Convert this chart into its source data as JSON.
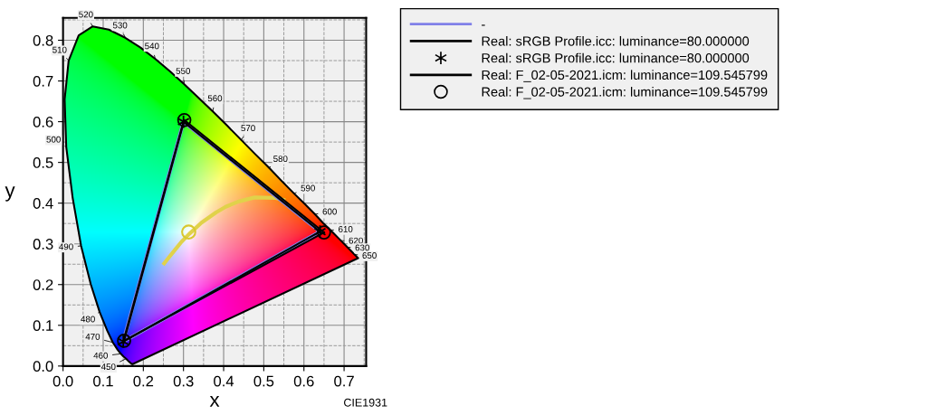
{
  "chart_data": {
    "type": "line",
    "xlabel": "x",
    "ylabel": "y",
    "xlim": [
      0,
      0.755
    ],
    "ylim": [
      0,
      0.855
    ],
    "xticks": [
      {
        "value": 0,
        "label": "0.0"
      },
      {
        "value": 0.05,
        "label": null
      },
      0.1,
      {
        "value": 0.15,
        "label": null
      },
      0.2,
      {
        "value": 0.25,
        "label": null
      },
      0.3,
      {
        "value": 0.35,
        "label": null
      },
      0.4,
      {
        "value": 0.45,
        "label": null
      },
      0.5,
      {
        "value": 0.55,
        "label": null
      },
      0.6,
      {
        "value": 0.65,
        "label": null
      },
      0.7,
      {
        "value": 0.75,
        "label": null
      }
    ],
    "yticks": [
      {
        "value": 0,
        "label": "0.0"
      },
      {
        "value": 0.05,
        "label": null
      },
      0.1,
      {
        "value": 0.15,
        "label": null
      },
      0.2,
      {
        "value": 0.25,
        "label": null
      },
      0.3,
      {
        "value": 0.35,
        "label": null
      },
      0.4,
      {
        "value": 0.45,
        "label": null
      },
      0.5,
      {
        "value": 0.55,
        "label": null
      },
      0.6,
      {
        "value": 0.65,
        "label": null
      },
      0.7,
      {
        "value": 0.75,
        "label": null
      },
      0.8,
      {
        "value": 0.85,
        "label": null
      }
    ],
    "grid": true,
    "legend": "top right",
    "series": [
      {
        "color": "#000000",
        "line_style": "solid",
        "marker": "none",
        "x": [
          0.173,
          0.171,
          0.169,
          0.164,
          0.157,
          0.151,
          0.144,
          0.136,
          0.124,
          0.11,
          0.091,
          0.069,
          0.045,
          0.024,
          0.008,
          0.004,
          0.014,
          0.039,
          0.074,
          0.114,
          0.155,
          0.193,
          0.23,
          0.266,
          0.302,
          0.337,
          0.373,
          0.409,
          0.444,
          0.479,
          0.513,
          0.545,
          0.575,
          0.603,
          0.627,
          0.648,
          0.666,
          0.692,
          0.708,
          0.719,
          0.726,
          0.735,
          0.174
        ],
        "values": [
          0.005,
          0.005,
          0.007,
          0.011,
          0.018,
          0.023,
          0.03,
          0.04,
          0.058,
          0.087,
          0.133,
          0.201,
          0.295,
          0.413,
          0.538,
          0.655,
          0.75,
          0.812,
          0.834,
          0.826,
          0.806,
          0.782,
          0.754,
          0.724,
          0.692,
          0.659,
          0.625,
          0.59,
          0.555,
          0.52,
          0.487,
          0.454,
          0.424,
          0.397,
          0.373,
          0.351,
          0.334,
          0.308,
          0.292,
          0.281,
          0.274,
          0.265,
          0.005
        ]
      },
      {
        "color": "#e0d24a",
        "line_style": "solid",
        "marker": "none",
        "x": [
          0.252,
          0.264,
          0.281,
          0.295,
          0.314,
          0.345,
          0.381,
          0.405,
          0.437,
          0.477,
          0.527,
          0.549
        ],
        "values": [
          0.252,
          0.267,
          0.288,
          0.305,
          0.324,
          0.352,
          0.377,
          0.391,
          0.404,
          0.414,
          0.413,
          0.408
        ]
      },
      {
        "type": "scatter",
        "color": "#d8c830",
        "marker": "circle",
        "x": [
          0.313
        ],
        "values": [
          0.329
        ]
      },
      {
        "name": "-",
        "color": "#8080e8",
        "line_style": "solid",
        "marker": "none",
        "x": [
          0.64,
          0.3,
          0.15
        ],
        "values": [
          0.33,
          0.6,
          0.06
        ]
      },
      {
        "color": "#8080e8",
        "line_style": "solid",
        "marker": "none",
        "x": [
          0.15,
          0.64
        ],
        "values": [
          0.06,
          0.33
        ]
      },
      {
        "name": "Real: sRGB Profile.icc: luminance=80.000000",
        "color": "#000000",
        "line_style": "solid",
        "marker": "cross",
        "x": [
          0.64,
          0.3,
          0.15
        ],
        "values": [
          0.33,
          0.6,
          0.06
        ]
      },
      {
        "color": "#000000",
        "line_style": "solid",
        "marker": "none",
        "x": [
          0.15,
          0.64
        ],
        "values": [
          0.06,
          0.33
        ]
      },
      {
        "name": "Real: F_02-05-2021.icm: luminance=109.545799",
        "color": "#000000",
        "line_style": "solid",
        "marker": "circle",
        "x": [
          0.65,
          0.302,
          0.152
        ],
        "values": [
          0.328,
          0.604,
          0.062
        ]
      },
      {
        "color": "#000000",
        "line_style": "solid",
        "marker": "none",
        "x": [
          0.152,
          0.65
        ],
        "values": [
          0.062,
          0.328
        ]
      }
    ],
    "annotations": [
      {
        "text": "450",
        "x": 0.157,
        "y": 0.018
      },
      {
        "text": "460",
        "x": 0.144,
        "y": 0.03
      },
      {
        "text": "470",
        "x": 0.124,
        "y": 0.058
      },
      {
        "text": "480",
        "x": 0.091,
        "y": 0.133
      },
      {
        "text": "490",
        "x": 0.045,
        "y": 0.295
      },
      {
        "text": "500",
        "x": 0.008,
        "y": 0.538
      },
      {
        "text": "510",
        "x": 0.014,
        "y": 0.75
      },
      {
        "text": "520",
        "x": 0.074,
        "y": 0.834
      },
      {
        "text": "530",
        "x": 0.155,
        "y": 0.806
      },
      {
        "text": "540",
        "x": 0.23,
        "y": 0.754
      },
      {
        "text": "550",
        "x": 0.302,
        "y": 0.692
      },
      {
        "text": "560",
        "x": 0.373,
        "y": 0.625
      },
      {
        "text": "570",
        "x": 0.444,
        "y": 0.555
      },
      {
        "text": "580",
        "x": 0.513,
        "y": 0.487
      },
      {
        "text": "590",
        "x": 0.575,
        "y": 0.424
      },
      {
        "text": "600",
        "x": 0.627,
        "y": 0.373
      },
      {
        "text": "610",
        "x": 0.666,
        "y": 0.334
      },
      {
        "text": "620",
        "x": 0.692,
        "y": 0.308
      },
      {
        "text": "630",
        "x": 0.708,
        "y": 0.292
      },
      {
        "text": "650",
        "x": 0.726,
        "y": 0.274
      },
      "CIE1931"
    ]
  }
}
